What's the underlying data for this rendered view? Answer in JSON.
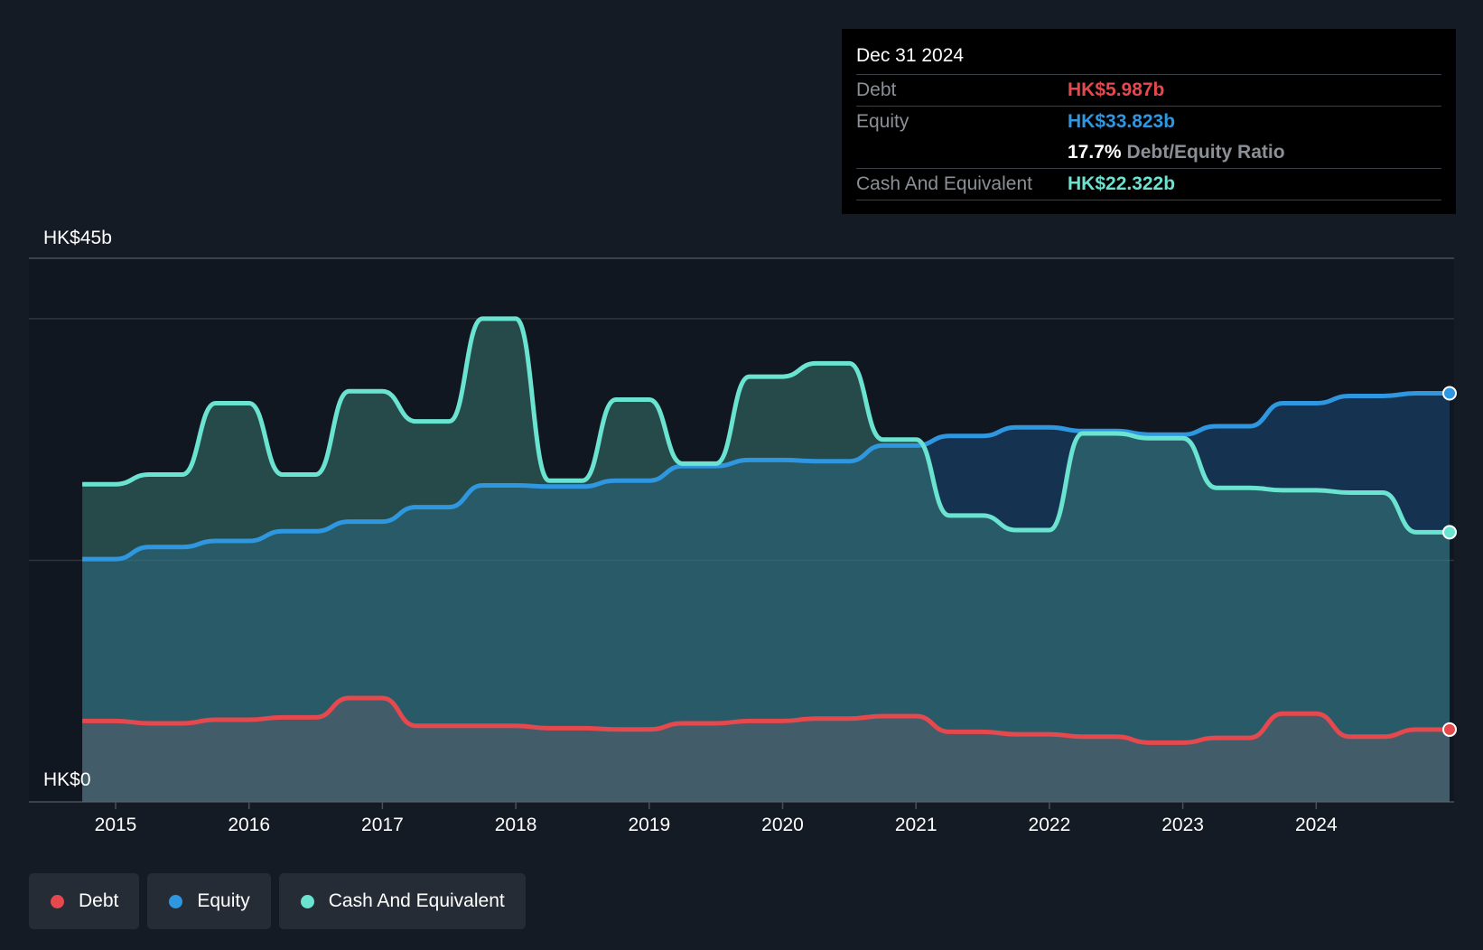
{
  "tooltip": {
    "date": "Dec 31 2024",
    "debt_label": "Debt",
    "debt_value": "HK$5.987b",
    "equity_label": "Equity",
    "equity_value": "HK$33.823b",
    "ratio_value": "17.7%",
    "ratio_label": "Debt/Equity Ratio",
    "cash_label": "Cash And Equivalent",
    "cash_value": "HK$22.322b"
  },
  "legend": [
    {
      "label": "Debt",
      "color": "#e5484d"
    },
    {
      "label": "Equity",
      "color": "#2f96e0"
    },
    {
      "label": "Cash And Equivalent",
      "color": "#6ae3d0"
    }
  ],
  "chart_data": {
    "type": "area",
    "y_top_label": "HK$45b",
    "y_bottom_label": "HK$0",
    "ylim": [
      0,
      45
    ],
    "xlim": [
      2014.7,
      2025.0
    ],
    "x_ticks": [
      "2015",
      "2016",
      "2017",
      "2018",
      "2019",
      "2020",
      "2021",
      "2022",
      "2023",
      "2024"
    ],
    "grid": "horizontal",
    "colors": {
      "debt": "#e5484d",
      "equity": "#2f96e0",
      "cash": "#6ae3d0"
    },
    "series": [
      {
        "name": "Debt",
        "points": [
          [
            2014.75,
            6.7
          ],
          [
            2015.0,
            6.7
          ],
          [
            2015.25,
            6.5
          ],
          [
            2015.5,
            6.5
          ],
          [
            2015.75,
            6.8
          ],
          [
            2016.0,
            6.8
          ],
          [
            2016.25,
            7.0
          ],
          [
            2016.5,
            7.0
          ],
          [
            2016.75,
            8.6
          ],
          [
            2017.0,
            8.6
          ],
          [
            2017.25,
            6.3
          ],
          [
            2017.5,
            6.3
          ],
          [
            2017.75,
            6.3
          ],
          [
            2018.0,
            6.3
          ],
          [
            2018.25,
            6.1
          ],
          [
            2018.5,
            6.1
          ],
          [
            2018.75,
            6.0
          ],
          [
            2019.0,
            6.0
          ],
          [
            2019.25,
            6.5
          ],
          [
            2019.5,
            6.5
          ],
          [
            2019.75,
            6.7
          ],
          [
            2020.0,
            6.7
          ],
          [
            2020.25,
            6.9
          ],
          [
            2020.5,
            6.9
          ],
          [
            2020.75,
            7.1
          ],
          [
            2021.0,
            7.1
          ],
          [
            2021.25,
            5.8
          ],
          [
            2021.5,
            5.8
          ],
          [
            2021.75,
            5.6
          ],
          [
            2022.0,
            5.6
          ],
          [
            2022.25,
            5.4
          ],
          [
            2022.5,
            5.4
          ],
          [
            2022.75,
            4.9
          ],
          [
            2023.0,
            4.9
          ],
          [
            2023.25,
            5.3
          ],
          [
            2023.5,
            5.3
          ],
          [
            2023.75,
            7.3
          ],
          [
            2024.0,
            7.3
          ],
          [
            2024.25,
            5.4
          ],
          [
            2024.5,
            5.4
          ],
          [
            2024.75,
            5.987
          ],
          [
            2025.0,
            5.987
          ]
        ]
      },
      {
        "name": "Equity",
        "points": [
          [
            2014.75,
            20.1
          ],
          [
            2015.0,
            20.1
          ],
          [
            2015.25,
            21.1
          ],
          [
            2015.5,
            21.1
          ],
          [
            2015.75,
            21.6
          ],
          [
            2016.0,
            21.6
          ],
          [
            2016.25,
            22.4
          ],
          [
            2016.5,
            22.4
          ],
          [
            2016.75,
            23.2
          ],
          [
            2017.0,
            23.2
          ],
          [
            2017.25,
            24.4
          ],
          [
            2017.5,
            24.4
          ],
          [
            2017.75,
            26.2
          ],
          [
            2018.0,
            26.2
          ],
          [
            2018.25,
            26.1
          ],
          [
            2018.5,
            26.1
          ],
          [
            2018.75,
            26.6
          ],
          [
            2019.0,
            26.6
          ],
          [
            2019.25,
            27.8
          ],
          [
            2019.5,
            27.8
          ],
          [
            2019.75,
            28.3
          ],
          [
            2020.0,
            28.3
          ],
          [
            2020.25,
            28.2
          ],
          [
            2020.5,
            28.2
          ],
          [
            2020.75,
            29.5
          ],
          [
            2021.0,
            29.5
          ],
          [
            2021.25,
            30.3
          ],
          [
            2021.5,
            30.3
          ],
          [
            2021.75,
            31.0
          ],
          [
            2022.0,
            31.0
          ],
          [
            2022.25,
            30.7
          ],
          [
            2022.5,
            30.7
          ],
          [
            2022.75,
            30.4
          ],
          [
            2023.0,
            30.4
          ],
          [
            2023.25,
            31.1
          ],
          [
            2023.5,
            31.1
          ],
          [
            2023.75,
            33.0
          ],
          [
            2024.0,
            33.0
          ],
          [
            2024.25,
            33.6
          ],
          [
            2024.5,
            33.6
          ],
          [
            2024.75,
            33.823
          ],
          [
            2025.0,
            33.823
          ]
        ]
      },
      {
        "name": "Cash And Equivalent",
        "points": [
          [
            2014.75,
            26.3
          ],
          [
            2015.0,
            26.3
          ],
          [
            2015.25,
            27.1
          ],
          [
            2015.5,
            27.1
          ],
          [
            2015.75,
            33.0
          ],
          [
            2016.0,
            33.0
          ],
          [
            2016.25,
            27.1
          ],
          [
            2016.5,
            27.1
          ],
          [
            2016.75,
            34.0
          ],
          [
            2017.0,
            34.0
          ],
          [
            2017.25,
            31.5
          ],
          [
            2017.5,
            31.5
          ],
          [
            2017.75,
            40.0
          ],
          [
            2018.0,
            40.0
          ],
          [
            2018.25,
            26.6
          ],
          [
            2018.5,
            26.6
          ],
          [
            2018.75,
            33.3
          ],
          [
            2019.0,
            33.3
          ],
          [
            2019.25,
            28.0
          ],
          [
            2019.5,
            28.0
          ],
          [
            2019.75,
            35.2
          ],
          [
            2020.0,
            35.2
          ],
          [
            2020.25,
            36.3
          ],
          [
            2020.5,
            36.3
          ],
          [
            2020.75,
            30.0
          ],
          [
            2021.0,
            30.0
          ],
          [
            2021.25,
            23.7
          ],
          [
            2021.5,
            23.7
          ],
          [
            2021.75,
            22.5
          ],
          [
            2022.0,
            22.5
          ],
          [
            2022.25,
            30.5
          ],
          [
            2022.5,
            30.5
          ],
          [
            2022.75,
            30.1
          ],
          [
            2023.0,
            30.1
          ],
          [
            2023.25,
            26.0
          ],
          [
            2023.5,
            26.0
          ],
          [
            2023.75,
            25.8
          ],
          [
            2024.0,
            25.8
          ],
          [
            2024.25,
            25.6
          ],
          [
            2024.5,
            25.6
          ],
          [
            2024.75,
            22.322
          ],
          [
            2025.0,
            22.322
          ]
        ]
      }
    ]
  }
}
